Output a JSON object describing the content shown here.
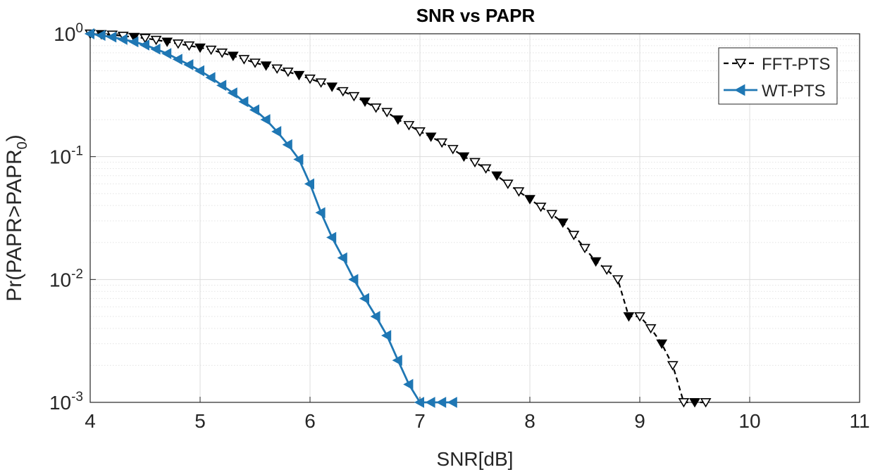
{
  "chart_data": {
    "type": "line",
    "title": "SNR vs PAPR",
    "xlabel": "SNR[dB]",
    "ylabel_base": "Pr(PAPR>PAPR",
    "ylabel_sub": "0",
    "ylabel_close": ")",
    "xscale": "linear",
    "yscale": "log",
    "xlim": [
      4,
      11
    ],
    "ylim": [
      0.001,
      1
    ],
    "grid": true,
    "minor_grid": true,
    "legend_position": "top-right",
    "x_ticks": [
      "4",
      "5",
      "6",
      "7",
      "8",
      "9",
      "10",
      "11"
    ],
    "y_ticks": [
      {
        "base": "10",
        "exp": "0",
        "value": 1
      },
      {
        "base": "10",
        "exp": "-1",
        "value": 0.1
      },
      {
        "base": "10",
        "exp": "-2",
        "value": 0.01
      },
      {
        "base": "10",
        "exp": "-3",
        "value": 0.001
      }
    ],
    "series": [
      {
        "name": "FFT-PTS",
        "color": "#000000",
        "line_style": "dashed",
        "marker": "triangle-down",
        "marker_filled": [
          false,
          true,
          false
        ],
        "x": [
          4.0,
          4.1,
          4.2,
          4.3,
          4.4,
          4.5,
          4.6,
          4.7,
          4.8,
          4.9,
          5.0,
          5.1,
          5.2,
          5.3,
          5.4,
          5.5,
          5.6,
          5.7,
          5.8,
          5.9,
          6.0,
          6.1,
          6.2,
          6.3,
          6.4,
          6.5,
          6.6,
          6.7,
          6.8,
          6.9,
          7.0,
          7.1,
          7.2,
          7.3,
          7.4,
          7.5,
          7.6,
          7.7,
          7.8,
          7.9,
          8.0,
          8.1,
          8.2,
          8.3,
          8.4,
          8.5,
          8.6,
          8.7,
          8.8,
          8.9,
          9.0,
          9.1,
          9.2,
          9.3,
          9.4,
          9.5,
          9.6
        ],
        "y": [
          1.0,
          0.99,
          0.98,
          0.96,
          0.94,
          0.92,
          0.89,
          0.86,
          0.83,
          0.8,
          0.77,
          0.74,
          0.7,
          0.66,
          0.62,
          0.58,
          0.55,
          0.52,
          0.49,
          0.46,
          0.43,
          0.4,
          0.37,
          0.34,
          0.31,
          0.28,
          0.25,
          0.23,
          0.2,
          0.18,
          0.16,
          0.145,
          0.13,
          0.115,
          0.1,
          0.09,
          0.08,
          0.07,
          0.06,
          0.052,
          0.045,
          0.039,
          0.034,
          0.029,
          0.023,
          0.018,
          0.014,
          0.012,
          0.01,
          0.005,
          0.005,
          0.004,
          0.003,
          0.002,
          0.001,
          0.001,
          0.001
        ]
      },
      {
        "name": "WT-PTS",
        "color": "#1f77b4",
        "line_style": "solid",
        "marker": "triangle-left",
        "marker_filled": [
          true
        ],
        "x": [
          4.0,
          4.1,
          4.2,
          4.3,
          4.4,
          4.5,
          4.6,
          4.7,
          4.8,
          4.9,
          5.0,
          5.1,
          5.2,
          5.3,
          5.4,
          5.5,
          5.6,
          5.7,
          5.8,
          5.9,
          6.0,
          6.1,
          6.2,
          6.3,
          6.4,
          6.5,
          6.6,
          6.7,
          6.8,
          6.9,
          7.0,
          7.1,
          7.2,
          7.3
        ],
        "y": [
          1.0,
          0.97,
          0.94,
          0.9,
          0.86,
          0.81,
          0.75,
          0.69,
          0.62,
          0.56,
          0.5,
          0.44,
          0.38,
          0.33,
          0.28,
          0.24,
          0.2,
          0.16,
          0.125,
          0.095,
          0.06,
          0.035,
          0.022,
          0.015,
          0.01,
          0.007,
          0.005,
          0.0035,
          0.0022,
          0.0014,
          0.001,
          0.001,
          0.001,
          0.001
        ]
      }
    ]
  }
}
